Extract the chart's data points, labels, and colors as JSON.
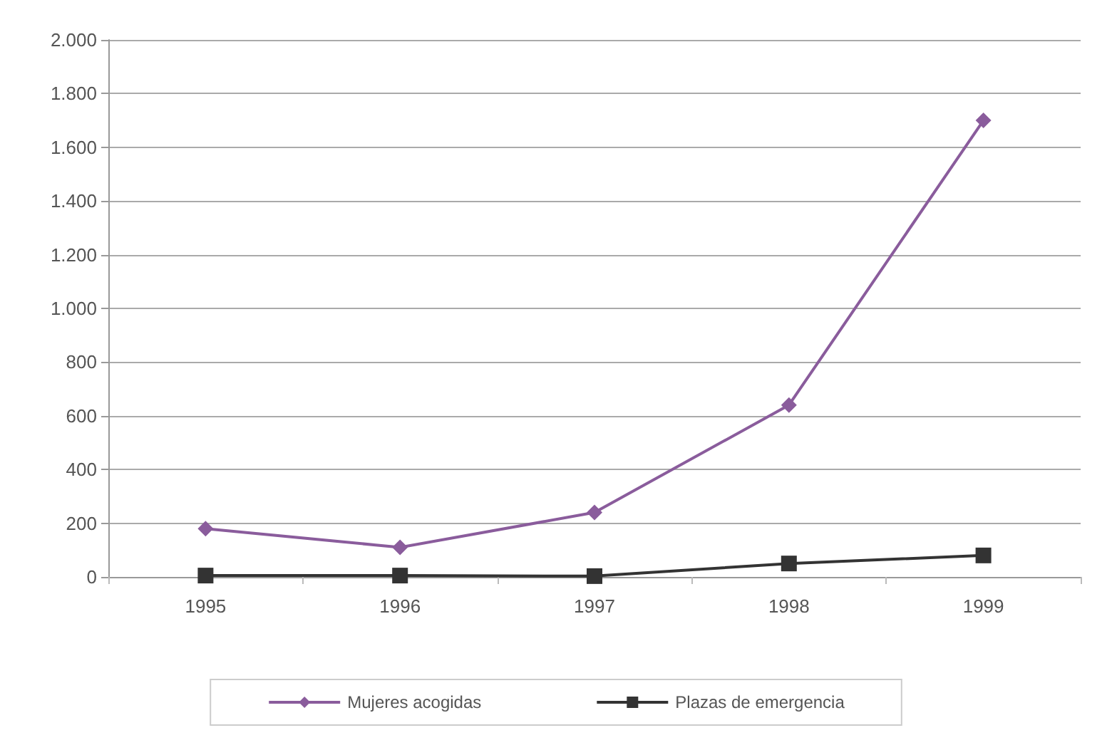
{
  "chart_data": {
    "type": "line",
    "categories": [
      "1995",
      "1996",
      "1997",
      "1998",
      "1999"
    ],
    "series": [
      {
        "name": "Mujeres acogidas",
        "color": "#8a5c9c",
        "marker": "diamond",
        "values": [
          180,
          110,
          240,
          640,
          1700
        ]
      },
      {
        "name": "Plazas de emergencia",
        "color": "#333333",
        "marker": "square",
        "values": [
          5,
          5,
          3,
          50,
          80
        ]
      }
    ],
    "ylim": [
      0,
      2000
    ],
    "yticks": [
      0,
      200,
      400,
      600,
      800,
      {
        "value": 1000,
        "label": "1.000"
      },
      {
        "value": 1200,
        "label": "1.200"
      },
      {
        "value": 1400,
        "label": "1.400"
      },
      {
        "value": 1600,
        "label": "1.600"
      },
      {
        "value": 1800,
        "label": "1.800"
      },
      {
        "value": 2000,
        "label": "2.000"
      }
    ],
    "grid": "y",
    "legend": "bottom"
  }
}
